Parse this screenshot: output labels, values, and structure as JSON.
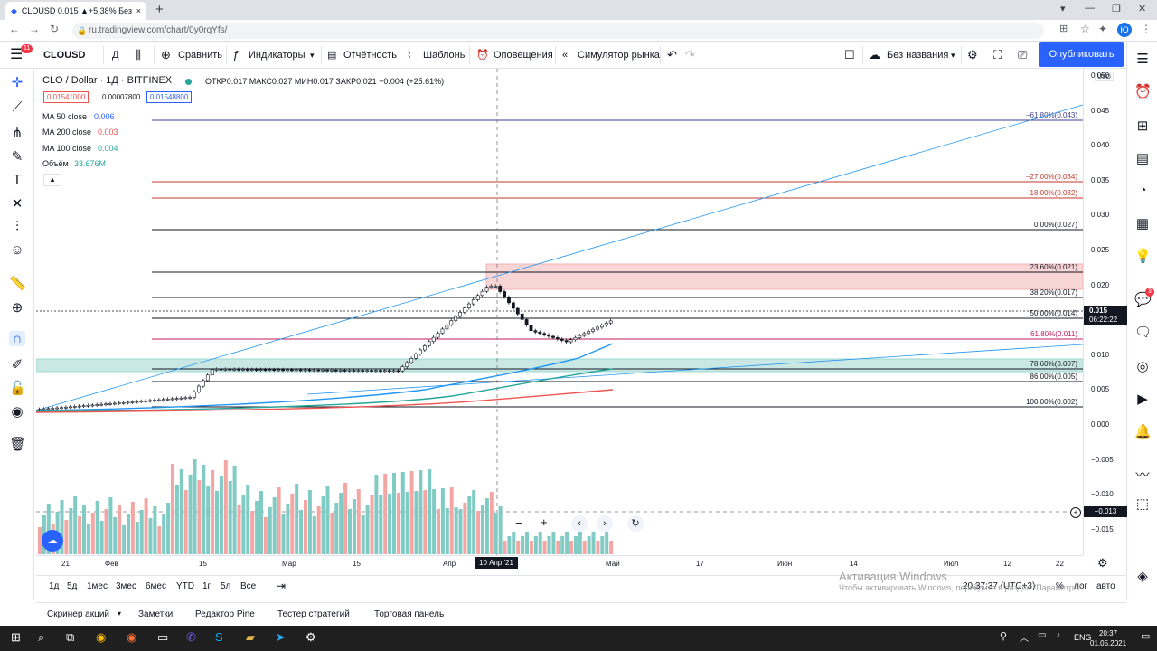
{
  "browser": {
    "tab_title": "CLOUSD 0.015 ▲+5.38% Без на...",
    "tab_close": "×",
    "new_tab": "+",
    "url": "ru.tradingview.com/chart/0y0rqYfs/",
    "profile_initial": "Ю"
  },
  "toolbar": {
    "badge": "11",
    "symbol": "CLOUSD",
    "interval": "Д",
    "compare": "Сравнить",
    "indicators": "Индикаторы",
    "financials": "Отчётность",
    "templates": "Шаблоны",
    "alerts": "Оповещения",
    "replay": "Симулятор рынка",
    "layout_name": "Без названия",
    "publish": "Опубликовать"
  },
  "legend": {
    "title": "CLO / Dollar · 1Д · BITFINEX",
    "ohlc": "ОТКР0.017  МАКС0.027  МИН0.017  ЗАКР0.021  +0.004 (+25.61%)",
    "bid": "0.01541000",
    "spread": "0.00007800",
    "ask": "0.01548800",
    "ma50_label": "MA 50 close",
    "ma50_value": "0.006",
    "ma200_label": "MA 200 close",
    "ma200_value": "0.003",
    "ma100_label": "MA 100 close",
    "ma100_value": "0.004",
    "volume_label": "Объём",
    "volume_value": "33.676M"
  },
  "price_axis": {
    "currency": "USD",
    "ticks": [
      "0.050",
      "0.045",
      "0.040",
      "0.035",
      "0.030",
      "0.025",
      "0.020",
      "0.015",
      "0.010",
      "0.005",
      "0.000",
      "−0.005",
      "−0.010",
      "−0.015"
    ],
    "last_price": "0.015",
    "countdown": "06:22:22",
    "crosshair_price": "−0.013"
  },
  "fib_levels": [
    {
      "label": "−61.80%(0.043)",
      "price": 0.043,
      "color": "#3f3f8f"
    },
    {
      "label": "−27.00%(0.034)",
      "price": 0.034,
      "color": "#c0392b"
    },
    {
      "label": "−18.00%(0.032)",
      "price": 0.032,
      "color": "#c0392b"
    },
    {
      "label": "0.00%(0.027)",
      "price": 0.027,
      "color": "#131722"
    },
    {
      "label": "23.60%(0.021)",
      "price": 0.021,
      "color": "#131722"
    },
    {
      "label": "38.20%(0.017)",
      "price": 0.017,
      "color": "#131722"
    },
    {
      "label": "50.00%(0.014)",
      "price": 0.014,
      "color": "#131722"
    },
    {
      "label": "61.80%(0.011)",
      "price": 0.011,
      "color": "#c2185b"
    },
    {
      "label": "78.60%(0.007)",
      "price": 0.007,
      "color": "#131722"
    },
    {
      "label": "86.00%(0.005)",
      "price": 0.005,
      "color": "#131722"
    },
    {
      "label": "100.00%(0.002)",
      "price": 0.002,
      "color": "#131722"
    }
  ],
  "time_axis": {
    "ticks": [
      "21",
      "Фев",
      "15",
      "Мар",
      "15",
      "Апр",
      "Май",
      "17",
      "Июн",
      "14",
      "Июл",
      "12",
      "22"
    ],
    "highlight": "10 Апр '21"
  },
  "ranges": [
    "1д",
    "5д",
    "1мес",
    "3мес",
    "6мес",
    "YTD",
    "1г",
    "5л",
    "Все"
  ],
  "bottom_right": {
    "clock": "20:37:37 (UTC+3)",
    "percent": "%",
    "log": "лог",
    "auto": "авто"
  },
  "watermark": {
    "title": "Активация Windows",
    "text": "Чтобы активировать Windows, перейдите в раздел \"Параметры\"."
  },
  "footer_tabs": [
    "Скринер акций",
    "Заметки",
    "Редактор Pine",
    "Тестер стратегий",
    "Торговая панель"
  ],
  "taskbar": {
    "lang": "ENG",
    "time": "20:37",
    "date": "01.05.2021"
  },
  "colors": {
    "up": "#26a69a",
    "down": "#ef5350",
    "accent": "#2962ff"
  }
}
